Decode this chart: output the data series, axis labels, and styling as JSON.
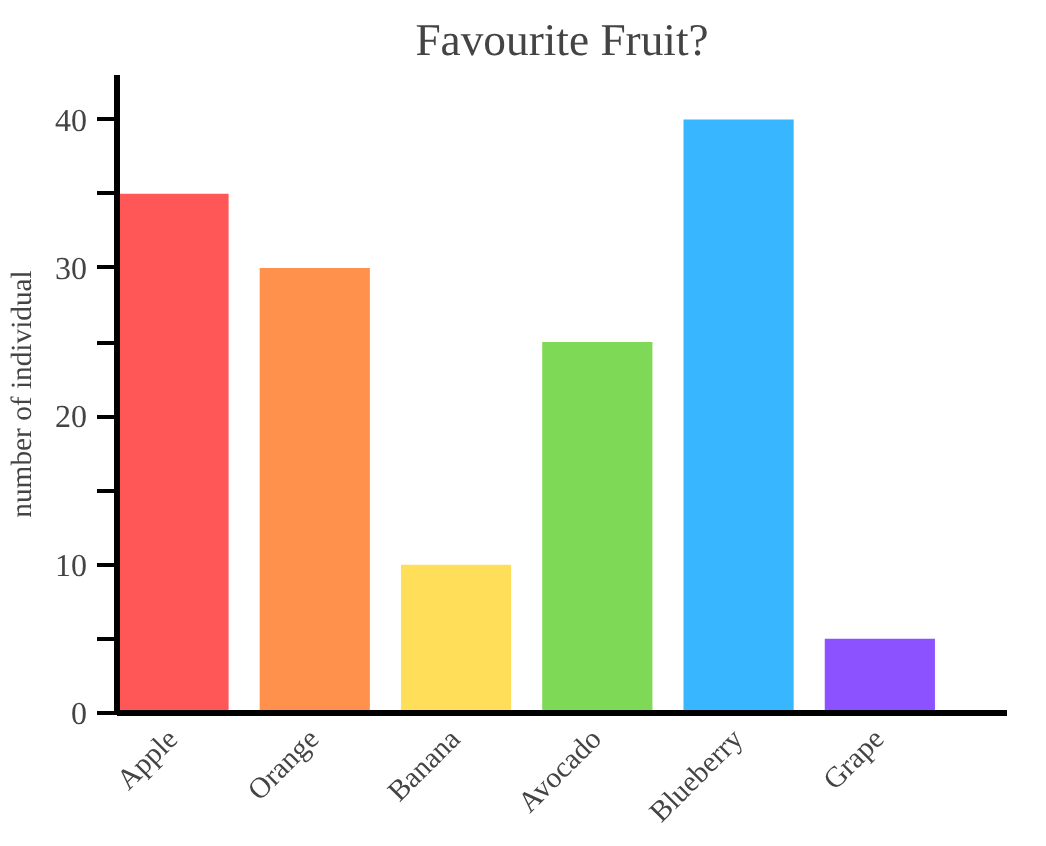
{
  "chart_data": {
    "type": "bar",
    "title": "Favourite Fruit?",
    "ylabel": "number of individual",
    "categories": [
      "Apple",
      "Orange",
      "Banana",
      "Avocado",
      "Blueberry",
      "Grape"
    ],
    "values": [
      35,
      30,
      10,
      25,
      40,
      5
    ],
    "colors": [
      "#ff5757",
      "#ff914d",
      "#ffde59",
      "#7ed957",
      "#38b6ff",
      "#8c52ff"
    ],
    "ylim": [
      0,
      43
    ],
    "yticks": [
      0,
      {
        "value": 5,
        "label": null
      },
      10,
      {
        "value": 15,
        "label": null
      },
      20,
      {
        "value": 25,
        "label": null
      },
      30,
      {
        "value": 35,
        "label": null
      },
      40
    ],
    "grid": false
  }
}
